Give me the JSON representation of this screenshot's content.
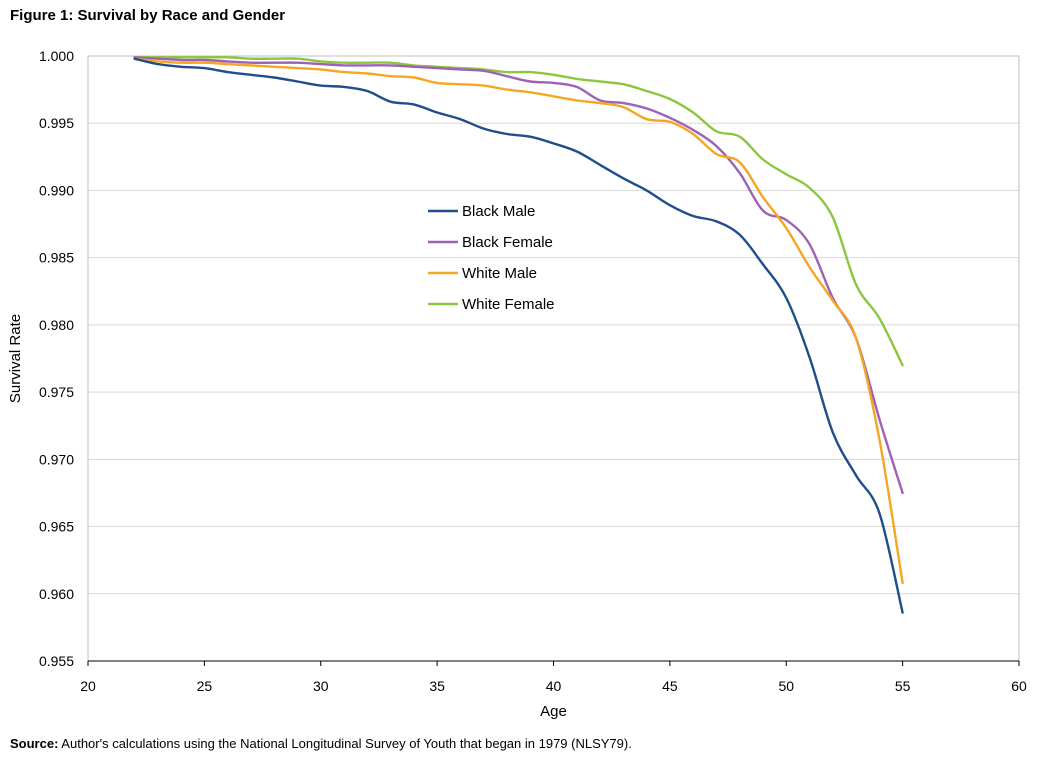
{
  "figure": {
    "title": "Figure 1: Survival by Race and Gender",
    "source_label": "Source:",
    "source_text": " Author's calculations using the National Longitudinal Survey of Youth that began in 1979  (NLSY79)."
  },
  "chart_data": {
    "type": "line",
    "title": "",
    "xlabel": "Age",
    "ylabel": "Survival Rate",
    "xlim": [
      20,
      60
    ],
    "ylim": [
      0.955,
      1.0
    ],
    "xticks": [
      20,
      25,
      30,
      35,
      40,
      45,
      50,
      55,
      60
    ],
    "yticks": [
      "0.955",
      "0.960",
      "0.965",
      "0.970",
      "0.975",
      "0.980",
      "0.985",
      "0.990",
      "0.995",
      "1.000"
    ],
    "grid": true,
    "legend_position": "center",
    "x": [
      22,
      23,
      24,
      25,
      26,
      27,
      28,
      29,
      30,
      31,
      32,
      33,
      34,
      35,
      36,
      37,
      38,
      39,
      40,
      41,
      42,
      43,
      44,
      45,
      46,
      47,
      48,
      49,
      50,
      51,
      52,
      53,
      54,
      55
    ],
    "series": [
      {
        "name": "Black Male",
        "color": "#1f4e8c",
        "values": [
          0.9998,
          0.9994,
          0.9992,
          0.9991,
          0.9988,
          0.9986,
          0.9984,
          0.9981,
          0.9978,
          0.9977,
          0.9974,
          0.9966,
          0.9964,
          0.9958,
          0.9953,
          0.9946,
          0.9942,
          0.994,
          0.9935,
          0.9929,
          0.9919,
          0.9909,
          0.99,
          0.9889,
          0.9881,
          0.9877,
          0.9867,
          0.9845,
          0.982,
          0.9776,
          0.972,
          0.9688,
          0.966,
          0.9586
        ]
      },
      {
        "name": "Black Female",
        "color": "#9e62b5",
        "values": [
          0.9999,
          0.9998,
          0.9997,
          0.9997,
          0.9996,
          0.9995,
          0.9995,
          0.9995,
          0.9994,
          0.9993,
          0.9993,
          0.9993,
          0.9992,
          0.9991,
          0.999,
          0.9989,
          0.9985,
          0.9981,
          0.998,
          0.9977,
          0.9967,
          0.9965,
          0.9961,
          0.9954,
          0.9945,
          0.9933,
          0.9913,
          0.9885,
          0.9878,
          0.986,
          0.982,
          0.979,
          0.973,
          0.9675
        ]
      },
      {
        "name": "White Male",
        "color": "#f5a623",
        "values": [
          0.9998,
          0.9996,
          0.9995,
          0.9995,
          0.9994,
          0.9993,
          0.9992,
          0.9991,
          0.999,
          0.9988,
          0.9987,
          0.9985,
          0.9984,
          0.998,
          0.9979,
          0.9978,
          0.9975,
          0.9973,
          0.997,
          0.9967,
          0.9965,
          0.9962,
          0.9953,
          0.9951,
          0.9942,
          0.9927,
          0.9921,
          0.9895,
          0.9872,
          0.9843,
          0.9818,
          0.979,
          0.9715,
          0.9608
        ]
      },
      {
        "name": "White Female",
        "color": "#8cc63f",
        "values": [
          0.9999,
          0.9999,
          0.9999,
          0.9999,
          0.9999,
          0.9998,
          0.9998,
          0.9998,
          0.9996,
          0.9995,
          0.9995,
          0.9995,
          0.9993,
          0.9992,
          0.9991,
          0.999,
          0.9988,
          0.9988,
          0.9986,
          0.9983,
          0.9981,
          0.9979,
          0.9974,
          0.9968,
          0.9958,
          0.9944,
          0.994,
          0.9923,
          0.9912,
          0.9902,
          0.988,
          0.983,
          0.9805,
          0.977
        ]
      }
    ]
  }
}
